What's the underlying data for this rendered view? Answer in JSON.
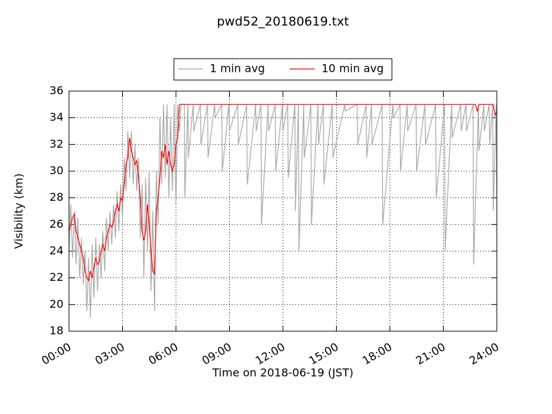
{
  "chart_data": {
    "type": "line",
    "title": "pwd52_20180619.txt",
    "xlabel": "Time on 2018-06-19 (JST)",
    "ylabel": "Visibility (km)",
    "xlim": [
      0,
      24
    ],
    "ylim": [
      18,
      36
    ],
    "xticks": [
      {
        "value": 0,
        "label": "00:00"
      },
      {
        "value": 3,
        "label": "03:00"
      },
      {
        "value": 6,
        "label": "06:00"
      },
      {
        "value": 9,
        "label": "09:00"
      },
      {
        "value": 12,
        "label": "12:00"
      },
      {
        "value": 15,
        "label": "15:00"
      },
      {
        "value": 18,
        "label": "18:00"
      },
      {
        "value": 21,
        "label": "21:00"
      },
      {
        "value": 24,
        "label": "24:00"
      }
    ],
    "yticks": [
      18,
      20,
      22,
      24,
      26,
      28,
      30,
      32,
      34,
      36
    ],
    "grid": true,
    "legend": "top",
    "series": [
      {
        "name": "1 min avg",
        "color": "#a9a9a9",
        "x": [
          0.0,
          0.1,
          0.2,
          0.3,
          0.4,
          0.5,
          0.6,
          0.7,
          0.8,
          0.9,
          1.0,
          1.1,
          1.2,
          1.3,
          1.4,
          1.5,
          1.6,
          1.7,
          1.8,
          1.9,
          2.0,
          2.1,
          2.2,
          2.3,
          2.4,
          2.5,
          2.6,
          2.7,
          2.8,
          2.9,
          3.0,
          3.1,
          3.2,
          3.3,
          3.4,
          3.5,
          3.6,
          3.7,
          3.8,
          3.9,
          4.0,
          4.1,
          4.2,
          4.3,
          4.4,
          4.5,
          4.6,
          4.7,
          4.8,
          4.9,
          5.0,
          5.1,
          5.2,
          5.3,
          5.4,
          5.5,
          5.6,
          5.7,
          5.8,
          5.9,
          6.0,
          6.1,
          6.2,
          6.3,
          6.47,
          6.5,
          6.67,
          6.7,
          6.97,
          7.0,
          7.37,
          7.4,
          7.77,
          7.8,
          8.17,
          8.2,
          8.57,
          8.6,
          8.97,
          9.0,
          9.47,
          9.5,
          9.97,
          10.0,
          10.47,
          10.5,
          10.77,
          10.8,
          11.17,
          11.2,
          11.57,
          11.6,
          11.97,
          12.0,
          12.27,
          12.3,
          12.67,
          12.7,
          12.87,
          12.9,
          13.17,
          13.2,
          13.57,
          13.6,
          13.97,
          14.0,
          14.27,
          14.3,
          14.77,
          14.8,
          15.47,
          15.5,
          16.17,
          16.2,
          16.67,
          16.7,
          16.97,
          17.0,
          17.57,
          17.6,
          18.17,
          18.2,
          18.57,
          18.6,
          18.97,
          19.0,
          19.47,
          19.5,
          19.97,
          20.0,
          20.57,
          20.6,
          21.07,
          21.1,
          21.47,
          21.5,
          21.97,
          22.0,
          22.27,
          22.3,
          22.67,
          22.7,
          22.97,
          23.0,
          23.27,
          23.3,
          23.57,
          23.6,
          23.77,
          23.8,
          23.97,
          24.0
        ],
        "values": [
          24,
          27.5,
          23.5,
          27,
          23,
          26.5,
          22,
          25,
          21.5,
          24,
          19.5,
          23.5,
          19,
          24.5,
          20.5,
          25,
          21,
          24.5,
          22,
          25.5,
          22.5,
          26.5,
          24,
          27,
          24.5,
          27.5,
          25,
          28.5,
          25.5,
          29,
          26.5,
          31,
          28.5,
          33,
          29.5,
          33,
          29,
          32,
          28.5,
          31,
          25,
          29,
          22,
          29.5,
          24,
          30,
          21,
          27,
          19.5,
          30,
          26,
          34,
          29,
          35,
          29.5,
          35,
          28,
          34,
          28.5,
          35,
          27.5,
          35,
          33,
          35,
          35,
          28,
          35,
          31,
          35,
          33,
          35,
          32,
          35,
          31,
          35,
          34,
          35,
          30,
          35,
          33,
          35,
          32,
          35,
          29,
          35,
          33,
          35,
          26,
          35,
          33,
          35,
          30,
          35,
          33,
          35,
          29.5,
          35,
          27,
          35,
          24,
          35,
          31,
          35,
          26,
          35,
          32,
          35,
          29,
          35,
          31,
          35,
          34.5,
          35,
          32,
          35,
          31,
          35,
          32,
          35,
          26,
          35,
          34,
          35,
          30,
          35,
          33,
          35,
          30,
          35,
          32,
          35,
          28,
          35,
          24,
          35,
          32.5,
          35,
          33,
          35,
          33,
          35,
          23,
          35,
          31.5,
          35,
          33,
          35,
          32,
          35,
          27,
          35,
          28
        ]
      },
      {
        "name": "10 min avg",
        "color": "#ff0000",
        "x": [
          0.0,
          0.1,
          0.2,
          0.3,
          0.4,
          0.5,
          0.6,
          0.7,
          0.8,
          0.9,
          1.0,
          1.1,
          1.2,
          1.3,
          1.4,
          1.5,
          1.6,
          1.7,
          1.8,
          1.9,
          2.0,
          2.1,
          2.2,
          2.3,
          2.4,
          2.5,
          2.6,
          2.7,
          2.8,
          2.9,
          3.0,
          3.1,
          3.2,
          3.3,
          3.4,
          3.5,
          3.6,
          3.7,
          3.8,
          3.9,
          4.0,
          4.1,
          4.2,
          4.3,
          4.4,
          4.5,
          4.6,
          4.7,
          4.8,
          4.9,
          5.0,
          5.1,
          5.2,
          5.3,
          5.4,
          5.5,
          5.6,
          5.7,
          5.8,
          5.9,
          6.0,
          6.1,
          6.2,
          6.3,
          22.8,
          22.9,
          23.0,
          23.8,
          23.9,
          24.0
        ],
        "values": [
          25.5,
          26,
          26.5,
          26.8,
          25.5,
          25,
          24.5,
          24,
          23.5,
          22.5,
          22,
          21.8,
          22.5,
          22,
          22.8,
          23.5,
          23,
          23.2,
          24,
          24.5,
          24,
          25,
          25.5,
          26,
          25.8,
          26.2,
          27,
          27.5,
          27,
          28,
          27.8,
          29,
          30.5,
          31,
          32.5,
          31.5,
          31,
          30.5,
          30.8,
          29.5,
          28,
          25.5,
          24.8,
          25.5,
          27.5,
          26,
          24,
          22.5,
          22.3,
          27,
          28,
          29.5,
          31.5,
          31,
          32,
          30.5,
          31.5,
          30.5,
          30,
          30.5,
          32,
          32.5,
          35,
          35,
          35,
          34.5,
          35,
          35,
          34.2,
          34.5
        ]
      }
    ]
  }
}
